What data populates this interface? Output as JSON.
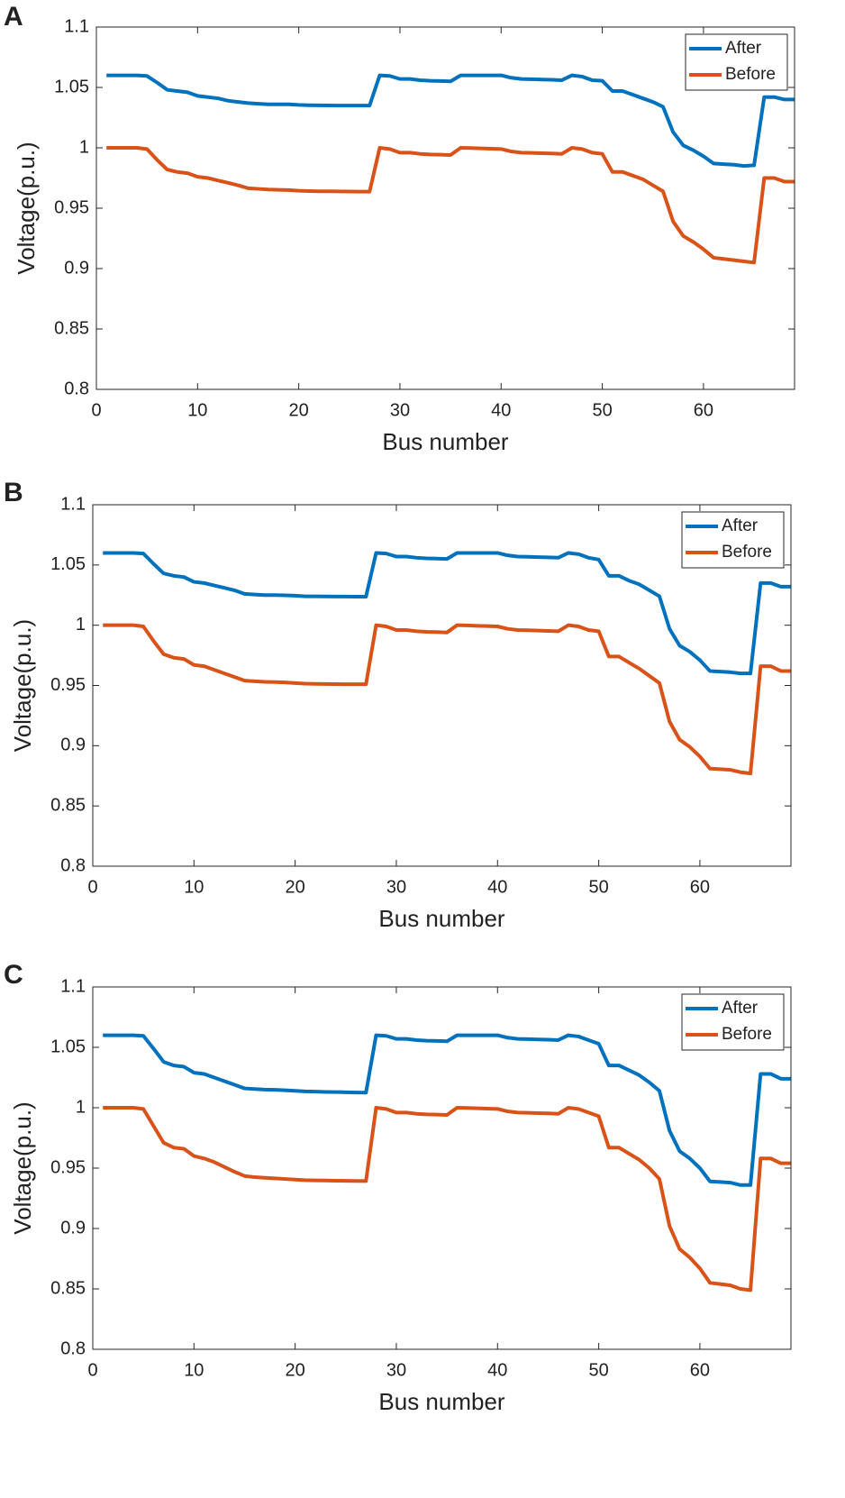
{
  "chart_data": [
    {
      "type": "line",
      "panel_label": "A",
      "xlabel": "Bus number",
      "ylabel": "Voltage(p.u.)",
      "x": [
        1,
        2,
        3,
        4,
        5,
        6,
        7,
        8,
        9,
        10,
        11,
        12,
        13,
        14,
        15,
        16,
        17,
        18,
        19,
        20,
        21,
        22,
        23,
        24,
        25,
        26,
        27,
        28,
        29,
        30,
        31,
        32,
        33,
        34,
        35,
        36,
        37,
        38,
        39,
        40,
        41,
        42,
        43,
        44,
        45,
        46,
        47,
        48,
        49,
        50,
        51,
        52,
        53,
        54,
        55,
        56,
        57,
        58,
        59,
        60,
        61,
        62,
        63,
        64,
        65,
        66,
        67,
        68,
        69
      ],
      "series": [
        {
          "name": "After",
          "color": "#0072bd",
          "values": [
            1.06,
            1.06,
            1.06,
            1.06,
            1.0595,
            1.054,
            1.048,
            1.047,
            1.046,
            1.043,
            1.042,
            1.041,
            1.039,
            1.038,
            1.037,
            1.0365,
            1.036,
            1.036,
            1.036,
            1.0355,
            1.0353,
            1.0352,
            1.0351,
            1.035,
            1.035,
            1.035,
            1.035,
            1.06,
            1.0595,
            1.057,
            1.057,
            1.056,
            1.0555,
            1.0553,
            1.055,
            1.06,
            1.06,
            1.06,
            1.06,
            1.06,
            1.058,
            1.057,
            1.0568,
            1.0565,
            1.0563,
            1.056,
            1.06,
            1.059,
            1.056,
            1.0555,
            1.047,
            1.047,
            1.044,
            1.041,
            1.038,
            1.034,
            1.013,
            1.002,
            0.998,
            0.993,
            0.987,
            0.9865,
            0.986,
            0.985,
            0.9855,
            1.042,
            1.042,
            1.04,
            1.04
          ]
        },
        {
          "name": "Before",
          "color": "#d95319",
          "values": [
            1,
            1,
            1,
            1,
            0.999,
            0.99,
            0.982,
            0.98,
            0.979,
            0.976,
            0.975,
            0.973,
            0.971,
            0.969,
            0.9665,
            0.966,
            0.9655,
            0.9652,
            0.965,
            0.9645,
            0.9642,
            0.964,
            0.964,
            0.9639,
            0.9638,
            0.9637,
            0.9637,
            1,
            0.999,
            0.996,
            0.996,
            0.995,
            0.9945,
            0.9943,
            0.994,
            1,
            0.9998,
            0.9995,
            0.9993,
            0.999,
            0.997,
            0.996,
            0.9958,
            0.9955,
            0.9953,
            0.995,
            1,
            0.999,
            0.996,
            0.995,
            0.98,
            0.98,
            0.977,
            0.974,
            0.969,
            0.964,
            0.939,
            0.927,
            0.922,
            0.916,
            0.909,
            0.908,
            0.907,
            0.906,
            0.905,
            0.975,
            0.975,
            0.972,
            0.972
          ]
        }
      ],
      "xlim": [
        0,
        69
      ],
      "ylim": [
        0.8,
        1.1
      ],
      "xticks": [
        0,
        10,
        20,
        30,
        40,
        50,
        60
      ],
      "yticks": [
        0.8,
        0.85,
        0.9,
        0.95,
        1,
        1.05,
        1.1
      ],
      "legend": "upper right"
    },
    {
      "type": "line",
      "panel_label": "B",
      "xlabel": "Bus number",
      "ylabel": "Voltage(p.u.)",
      "x": [
        1,
        2,
        3,
        4,
        5,
        6,
        7,
        8,
        9,
        10,
        11,
        12,
        13,
        14,
        15,
        16,
        17,
        18,
        19,
        20,
        21,
        22,
        23,
        24,
        25,
        26,
        27,
        28,
        29,
        30,
        31,
        32,
        33,
        34,
        35,
        36,
        37,
        38,
        39,
        40,
        41,
        42,
        43,
        44,
        45,
        46,
        47,
        48,
        49,
        50,
        51,
        52,
        53,
        54,
        55,
        56,
        57,
        58,
        59,
        60,
        61,
        62,
        63,
        64,
        65,
        66,
        67,
        68,
        69
      ],
      "series": [
        {
          "name": "After",
          "color": "#0072bd",
          "values": [
            1.06,
            1.06,
            1.06,
            1.06,
            1.0595,
            1.051,
            1.043,
            1.041,
            1.04,
            1.036,
            1.035,
            1.033,
            1.031,
            1.029,
            1.026,
            1.0255,
            1.025,
            1.025,
            1.0248,
            1.0245,
            1.024,
            1.024,
            1.0239,
            1.0238,
            1.0238,
            1.0237,
            1.0237,
            1.06,
            1.0595,
            1.057,
            1.057,
            1.056,
            1.0555,
            1.0553,
            1.055,
            1.06,
            1.06,
            1.06,
            1.06,
            1.06,
            1.058,
            1.057,
            1.0568,
            1.0565,
            1.0563,
            1.056,
            1.06,
            1.059,
            1.056,
            1.0545,
            1.041,
            1.041,
            1.037,
            1.034,
            1.029,
            1.024,
            0.997,
            0.983,
            0.978,
            0.971,
            0.962,
            0.9615,
            0.961,
            0.96,
            0.96,
            1.035,
            1.035,
            1.032,
            1.032
          ]
        },
        {
          "name": "Before",
          "color": "#d95319",
          "values": [
            1,
            1,
            1,
            1,
            0.999,
            0.987,
            0.976,
            0.973,
            0.972,
            0.967,
            0.966,
            0.963,
            0.96,
            0.957,
            0.954,
            0.9535,
            0.953,
            0.9528,
            0.9525,
            0.952,
            0.9515,
            0.9513,
            0.9512,
            0.9511,
            0.951,
            0.951,
            0.951,
            1,
            0.999,
            0.996,
            0.996,
            0.995,
            0.9945,
            0.9943,
            0.994,
            1,
            0.9998,
            0.9995,
            0.9993,
            0.999,
            0.997,
            0.996,
            0.9958,
            0.9955,
            0.9953,
            0.995,
            1,
            0.999,
            0.996,
            0.995,
            0.974,
            0.974,
            0.969,
            0.964,
            0.958,
            0.952,
            0.92,
            0.905,
            0.899,
            0.891,
            0.881,
            0.8805,
            0.88,
            0.878,
            0.877,
            0.966,
            0.966,
            0.962,
            0.962
          ]
        }
      ],
      "xlim": [
        0,
        69
      ],
      "ylim": [
        0.8,
        1.1
      ],
      "xticks": [
        0,
        10,
        20,
        30,
        40,
        50,
        60
      ],
      "yticks": [
        0.8,
        0.85,
        0.9,
        0.95,
        1,
        1.05,
        1.1
      ],
      "legend": "upper right"
    },
    {
      "type": "line",
      "panel_label": "C",
      "xlabel": "Bus number",
      "ylabel": "Voltage(p.u.)",
      "x": [
        1,
        2,
        3,
        4,
        5,
        6,
        7,
        8,
        9,
        10,
        11,
        12,
        13,
        14,
        15,
        16,
        17,
        18,
        19,
        20,
        21,
        22,
        23,
        24,
        25,
        26,
        27,
        28,
        29,
        30,
        31,
        32,
        33,
        34,
        35,
        36,
        37,
        38,
        39,
        40,
        41,
        42,
        43,
        44,
        45,
        46,
        47,
        48,
        49,
        50,
        51,
        52,
        53,
        54,
        55,
        56,
        57,
        58,
        59,
        60,
        61,
        62,
        63,
        64,
        65,
        66,
        67,
        68,
        69
      ],
      "series": [
        {
          "name": "After",
          "color": "#0072bd",
          "values": [
            1.06,
            1.06,
            1.06,
            1.06,
            1.0595,
            1.049,
            1.038,
            1.035,
            1.034,
            1.029,
            1.028,
            1.025,
            1.022,
            1.019,
            1.016,
            1.0155,
            1.015,
            1.0148,
            1.0145,
            1.014,
            1.0135,
            1.0133,
            1.0131,
            1.013,
            1.0128,
            1.0126,
            1.0125,
            1.06,
            1.0595,
            1.057,
            1.057,
            1.056,
            1.0555,
            1.0553,
            1.055,
            1.06,
            1.06,
            1.06,
            1.06,
            1.06,
            1.058,
            1.057,
            1.0568,
            1.0565,
            1.0563,
            1.056,
            1.06,
            1.059,
            1.056,
            1.053,
            1.035,
            1.035,
            1.031,
            1.027,
            1.021,
            1.014,
            0.981,
            0.964,
            0.958,
            0.95,
            0.939,
            0.9385,
            0.938,
            0.936,
            0.936,
            1.028,
            1.028,
            1.024,
            1.024
          ]
        },
        {
          "name": "Before",
          "color": "#d95319",
          "values": [
            1,
            1,
            1,
            1,
            0.999,
            0.985,
            0.971,
            0.967,
            0.966,
            0.96,
            0.958,
            0.955,
            0.951,
            0.947,
            0.9435,
            0.9425,
            0.942,
            0.9415,
            0.941,
            0.9405,
            0.94,
            0.9398,
            0.9397,
            0.9396,
            0.9395,
            0.9394,
            0.9393,
            1,
            0.999,
            0.996,
            0.996,
            0.995,
            0.9945,
            0.9943,
            0.994,
            1,
            0.9998,
            0.9995,
            0.9993,
            0.999,
            0.997,
            0.996,
            0.9958,
            0.9955,
            0.9953,
            0.995,
            1,
            0.999,
            0.996,
            0.993,
            0.967,
            0.967,
            0.962,
            0.957,
            0.95,
            0.941,
            0.902,
            0.883,
            0.876,
            0.867,
            0.855,
            0.854,
            0.853,
            0.85,
            0.849,
            0.958,
            0.958,
            0.954,
            0.954
          ]
        }
      ],
      "xlim": [
        0,
        69
      ],
      "ylim": [
        0.8,
        1.1
      ],
      "xticks": [
        0,
        10,
        20,
        30,
        40,
        50,
        60
      ],
      "yticks": [
        0.8,
        0.85,
        0.9,
        0.95,
        1,
        1.05,
        1.1
      ],
      "legend": "upper right"
    }
  ]
}
